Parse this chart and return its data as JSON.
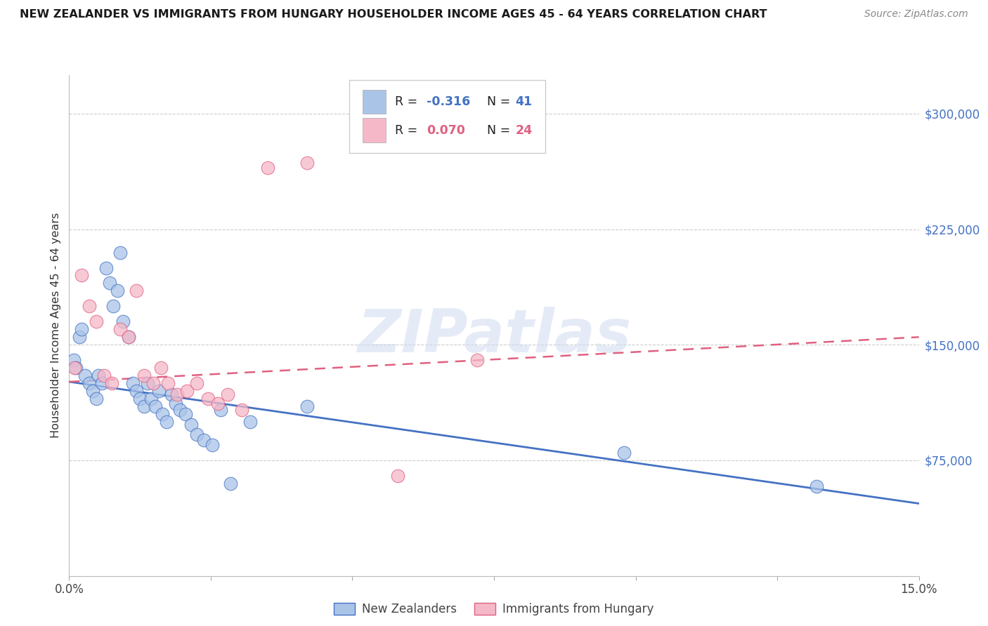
{
  "title": "NEW ZEALANDER VS IMMIGRANTS FROM HUNGARY HOUSEHOLDER INCOME AGES 45 - 64 YEARS CORRELATION CHART",
  "source": "Source: ZipAtlas.com",
  "ylabel": "Householder Income Ages 45 - 64 years",
  "xlim": [
    0.0,
    15.0
  ],
  "ylim": [
    0,
    325000
  ],
  "yticks": [
    0,
    75000,
    150000,
    225000,
    300000
  ],
  "ytick_labels": [
    "",
    "$75,000",
    "$150,000",
    "$225,000",
    "$300,000"
  ],
  "legend1_r": "-0.316",
  "legend1_n": "41",
  "legend2_r": "0.070",
  "legend2_n": "24",
  "blue_color": "#aac4e8",
  "pink_color": "#f5b8c8",
  "blue_line_color": "#4472c4",
  "pink_line_color": "#e06080",
  "watermark": "ZIPatlas",
  "nz_x": [
    0.08,
    0.12,
    0.18,
    0.22,
    0.28,
    0.35,
    0.42,
    0.48,
    0.52,
    0.58,
    0.65,
    0.72,
    0.78,
    0.85,
    0.9,
    0.95,
    1.05,
    1.12,
    1.18,
    1.25,
    1.32,
    1.38,
    1.45,
    1.52,
    1.58,
    1.65,
    1.72,
    1.8,
    1.88,
    1.95,
    2.05,
    2.15,
    2.25,
    2.38,
    2.52,
    2.68,
    2.85,
    3.2,
    4.2,
    9.8,
    13.2
  ],
  "nz_y": [
    140000,
    135000,
    155000,
    160000,
    130000,
    125000,
    120000,
    115000,
    130000,
    125000,
    200000,
    190000,
    175000,
    185000,
    210000,
    165000,
    155000,
    125000,
    120000,
    115000,
    110000,
    125000,
    115000,
    110000,
    120000,
    105000,
    100000,
    118000,
    112000,
    108000,
    105000,
    98000,
    92000,
    88000,
    85000,
    108000,
    60000,
    100000,
    110000,
    80000,
    58000
  ],
  "hu_x": [
    0.1,
    0.22,
    0.35,
    0.48,
    0.62,
    0.75,
    0.9,
    1.05,
    1.18,
    1.32,
    1.48,
    1.62,
    1.75,
    1.9,
    2.08,
    2.25,
    2.45,
    2.62,
    2.8,
    3.05,
    3.5,
    4.2,
    5.8,
    7.2
  ],
  "hu_y": [
    135000,
    195000,
    175000,
    165000,
    130000,
    125000,
    160000,
    155000,
    185000,
    130000,
    125000,
    135000,
    125000,
    118000,
    120000,
    125000,
    115000,
    112000,
    118000,
    108000,
    265000,
    268000,
    65000,
    140000
  ],
  "nz_line_x": [
    0.0,
    15.0
  ],
  "nz_line_y": [
    126000,
    47000
  ],
  "hu_line_x": [
    0.0,
    15.0
  ],
  "hu_line_y": [
    126000,
    155000
  ]
}
